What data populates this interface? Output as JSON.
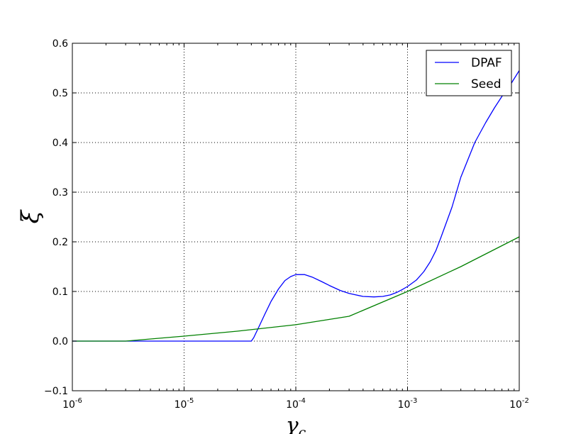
{
  "chart_data": {
    "type": "line",
    "xscale": "log",
    "xlabel": "γc",
    "ylabel": "ξ",
    "xlim": [
      1e-06,
      0.01
    ],
    "ylim": [
      -0.1,
      0.6
    ],
    "grid": true,
    "legend_position": "upper right",
    "x_ticks": [
      {
        "base": "10",
        "exp": "-6"
      },
      {
        "base": "10",
        "exp": "-5"
      },
      {
        "base": "10",
        "exp": "-4"
      },
      {
        "base": "10",
        "exp": "-3"
      },
      {
        "base": "10",
        "exp": "-2"
      }
    ],
    "y_ticks": [
      "−0.1",
      "0.0",
      "0.1",
      "0.2",
      "0.3",
      "0.4",
      "0.5",
      "0.6"
    ],
    "series": [
      {
        "name": "DPAF",
        "color": "#0000ff",
        "x": [
          1e-06,
          2e-06,
          5e-06,
          1e-05,
          2e-05,
          4e-05,
          4.2e-05,
          4.7e-05,
          5.3e-05,
          6e-05,
          7e-05,
          8e-05,
          9e-05,
          0.0001,
          0.00012,
          0.00014,
          0.00017,
          0.0002,
          0.00025,
          0.0003,
          0.0004,
          0.0005,
          0.0006,
          0.0007,
          0.0008,
          0.0009,
          0.001,
          0.0012,
          0.0014,
          0.0016,
          0.0018,
          0.002,
          0.0025,
          0.003,
          0.004,
          0.005,
          0.006,
          0.007,
          0.008,
          0.01
        ],
        "y": [
          0.0,
          0.0,
          0.0,
          0.0,
          0.0,
          0.0,
          0.007,
          0.03,
          0.055,
          0.08,
          0.105,
          0.122,
          0.13,
          0.134,
          0.134,
          0.129,
          0.12,
          0.112,
          0.102,
          0.096,
          0.09,
          0.089,
          0.09,
          0.093,
          0.098,
          0.104,
          0.11,
          0.123,
          0.14,
          0.16,
          0.183,
          0.21,
          0.27,
          0.33,
          0.4,
          0.44,
          0.47,
          0.493,
          0.51,
          0.545
        ]
      },
      {
        "name": "Seed",
        "color": "#008000",
        "x": [
          1e-06,
          3e-06,
          1e-05,
          3e-05,
          0.0001,
          0.0003,
          0.001,
          0.003,
          0.01
        ],
        "y": [
          0.0,
          0.0,
          0.01,
          0.02,
          0.033,
          0.05,
          0.1,
          0.15,
          0.21
        ]
      }
    ]
  }
}
